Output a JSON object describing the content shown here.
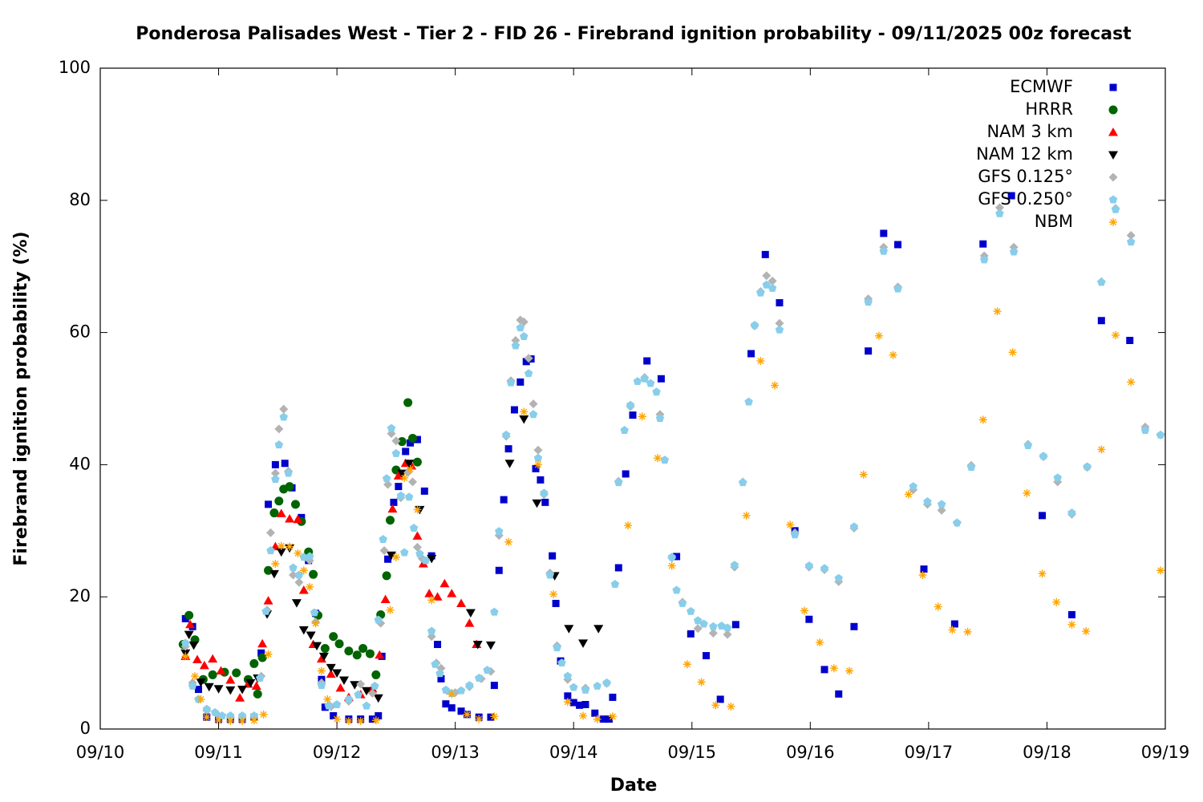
{
  "chart_data": {
    "type": "scatter",
    "title": "Ponderosa Palisades West - Tier 2 - FID 26 - Firebrand ignition probability - 09/11/2025 00z forecast",
    "xlabel": "Date",
    "ylabel": "Firebrand ignition probability (%)",
    "xlim": [
      0,
      9
    ],
    "ylim": [
      0,
      100
    ],
    "xticks": [
      {
        "value": 0,
        "label": "09/10"
      },
      {
        "value": 1,
        "label": "09/11"
      },
      {
        "value": 2,
        "label": "09/12"
      },
      {
        "value": 3,
        "label": "09/13"
      },
      {
        "value": 4,
        "label": "09/14"
      },
      {
        "value": 5,
        "label": "09/15"
      },
      {
        "value": 6,
        "label": "09/16"
      },
      {
        "value": 7,
        "label": "09/17"
      },
      {
        "value": 8,
        "label": "09/18"
      },
      {
        "value": 9,
        "label": "09/19"
      }
    ],
    "yticks": [
      0,
      20,
      40,
      60,
      80,
      100
    ],
    "legend": "top-right",
    "grid": false,
    "series": [
      {
        "name": "ECMWF",
        "color": "#0000cc",
        "x": [
          0.72,
          0.78,
          0.83,
          0.9,
          1.0,
          1.1,
          1.2,
          1.3,
          1.36,
          1.42,
          1.48,
          1.56,
          1.62,
          1.7,
          1.76,
          1.82,
          1.87,
          1.9,
          1.97,
          2.1,
          2.2,
          2.3,
          2.35,
          2.38,
          2.43,
          2.48,
          2.52,
          2.58,
          2.62,
          2.68,
          2.74,
          2.8,
          2.85,
          2.88,
          2.92,
          2.97,
          3.05,
          3.1,
          3.2,
          3.3,
          3.33,
          3.37,
          3.41,
          3.45,
          3.5,
          3.55,
          3.6,
          3.64,
          3.68,
          3.72,
          3.76,
          3.82,
          3.85,
          3.89,
          3.95,
          4.0,
          4.05,
          4.1,
          4.18,
          4.25,
          4.3,
          4.33,
          4.38,
          4.44,
          4.5,
          4.62,
          4.74,
          4.87,
          4.99,
          5.12,
          5.24,
          5.37,
          5.5,
          5.62,
          5.74,
          5.87,
          5.99,
          6.12,
          6.24,
          6.37,
          6.49,
          6.62,
          6.74,
          6.96,
          7.22,
          7.46,
          7.7,
          7.96,
          8.21,
          8.46,
          8.7
        ],
        "values": [
          16.7,
          15.5,
          6,
          1.8,
          1.5,
          1.5,
          1.5,
          1.8,
          11.5,
          34,
          40,
          40.2,
          36.5,
          32,
          25.5,
          17.5,
          7.5,
          3.3,
          2,
          1.5,
          1.5,
          1.5,
          2,
          11,
          25.7,
          34.3,
          36.7,
          42,
          43.3,
          43.8,
          36,
          26.2,
          12.8,
          7.6,
          3.8,
          3.2,
          2.7,
          2.2,
          1.8,
          1.8,
          6.6,
          24,
          34.7,
          42.4,
          48.3,
          52.5,
          55.6,
          56,
          39.4,
          37.7,
          34.3,
          26.2,
          19,
          10.3,
          5,
          4,
          3.6,
          3.7,
          2.4,
          1.5,
          1.5,
          4.8,
          24.4,
          38.6,
          47.5,
          55.7,
          53,
          26.1,
          14.4,
          11.1,
          4.5,
          15.8,
          56.8,
          71.8,
          64.5,
          30,
          16.6,
          9,
          5.3,
          15.5,
          57.2,
          75,
          73.3,
          24.2,
          15.9,
          73.4,
          80.7,
          32.3,
          17.3,
          61.8,
          58.8
        ]
      },
      {
        "name": "HRRR",
        "color": "#006400",
        "x": [
          0.7,
          0.75,
          0.8,
          0.87,
          0.95,
          1.05,
          1.15,
          1.25,
          1.3,
          1.33,
          1.37,
          1.42,
          1.47,
          1.51,
          1.55,
          1.6,
          1.65,
          1.7,
          1.76,
          1.8,
          1.84,
          1.9,
          1.97,
          2.02,
          2.1,
          2.17,
          2.22,
          2.28,
          2.33,
          2.37,
          2.42,
          2.45,
          2.5,
          2.55,
          2.6,
          2.64,
          2.68
        ],
        "values": [
          12.8,
          17.2,
          13.5,
          7.5,
          8.2,
          8.6,
          8.5,
          7.5,
          9.9,
          5.3,
          10.8,
          24,
          32.7,
          34.5,
          36.3,
          36.7,
          34,
          31.4,
          26.8,
          23.4,
          17.2,
          12.2,
          14,
          12.9,
          11.8,
          11.2,
          12.2,
          11.4,
          8.2,
          17.3,
          23.2,
          31.6,
          39.2,
          43.5,
          49.4,
          44,
          40.4
        ]
      },
      {
        "name": "NAM 3 km",
        "color": "#ff0000",
        "x": [
          0.72,
          0.76,
          0.82,
          0.88,
          0.95,
          1.02,
          1.1,
          1.18,
          1.25,
          1.32,
          1.37,
          1.42,
          1.48,
          1.53,
          1.6,
          1.67,
          1.72,
          1.8,
          1.87,
          1.95,
          2.03,
          2.1,
          2.2,
          2.3,
          2.36,
          2.41,
          2.47,
          2.52,
          2.58,
          2.63,
          2.68,
          2.73,
          2.78,
          2.85,
          2.91,
          2.97,
          3.05,
          3.12,
          3.18
        ],
        "values": [
          11,
          15.8,
          10.5,
          9.6,
          10.6,
          8.8,
          7.4,
          4.7,
          6.8,
          6.5,
          12.9,
          19.4,
          27.6,
          32.6,
          31.8,
          31.7,
          21,
          12.8,
          10.6,
          8.3,
          6.2,
          4.8,
          5.2,
          6.1,
          11.2,
          19.6,
          33.3,
          38.3,
          40.2,
          39.8,
          29.2,
          25,
          20.5,
          20,
          22,
          20.5,
          19,
          16,
          12.8
        ]
      },
      {
        "name": "NAM 12 km",
        "color": "#000000",
        "x": [
          0.72,
          0.75,
          0.79,
          0.85,
          0.92,
          1.0,
          1.1,
          1.2,
          1.27,
          1.33,
          1.41,
          1.47,
          1.53,
          1.6,
          1.66,
          1.72,
          1.78,
          1.83,
          1.89,
          1.95,
          2.0,
          2.06,
          2.15,
          2.25,
          2.35,
          2.46,
          2.55,
          2.61,
          2.7,
          2.8,
          3.13,
          3.19,
          3.3,
          3.46,
          3.58,
          3.69,
          3.84,
          3.96,
          4.08,
          4.21
        ],
        "values": [
          11.5,
          14.3,
          12.7,
          7.1,
          6.4,
          6.1,
          5.9,
          6,
          7,
          7.7,
          17.4,
          23.5,
          26.8,
          27.4,
          19.1,
          15,
          14.2,
          12.6,
          11,
          9.3,
          8.5,
          7.4,
          6.7,
          5.8,
          4.7,
          26.3,
          38.7,
          40.2,
          33.2,
          25.8,
          17.6,
          12.8,
          12.7,
          40.2,
          46.9,
          34.2,
          23.2,
          15.2,
          13,
          15.2
        ]
      },
      {
        "name": "GFS 0.125°",
        "color": "#b3b3b3",
        "x": [
          0.72,
          0.78,
          0.83,
          0.9,
          1.0,
          1.1,
          1.2,
          1.3,
          1.36,
          1.41,
          1.44,
          1.48,
          1.51,
          1.55,
          1.59,
          1.63,
          1.68,
          1.77,
          1.82,
          1.87,
          1.95,
          2.1,
          2.2,
          2.3,
          2.37,
          2.4,
          2.43,
          2.46,
          2.5,
          2.54,
          2.6,
          2.64,
          2.68,
          2.72,
          2.8,
          2.84,
          2.88,
          2.93,
          3.0,
          3.12,
          3.22,
          3.3,
          3.37,
          3.43,
          3.47,
          3.51,
          3.55,
          3.58,
          3.62,
          3.66,
          3.7,
          3.75,
          3.8,
          3.86,
          3.95,
          4.1,
          4.28,
          4.38,
          4.48,
          4.6,
          4.73,
          4.83,
          4.92,
          5.05,
          5.18,
          5.3,
          5.36,
          5.43,
          5.53,
          5.58,
          5.63,
          5.68,
          5.74,
          5.87,
          5.99,
          6.12,
          6.24,
          6.37,
          6.49,
          6.62,
          6.74,
          6.87,
          6.99,
          7.11,
          7.24,
          7.36,
          7.47,
          7.6,
          7.72,
          7.84,
          7.97,
          8.09,
          8.21,
          8.34,
          8.46,
          8.58,
          8.71,
          8.83,
          8.96
        ],
        "values": [
          12.5,
          7,
          4.5,
          2.8,
          2,
          1.8,
          1.8,
          1.8,
          8,
          18,
          29.7,
          38.7,
          45.4,
          48.4,
          39,
          23.3,
          22.2,
          25.5,
          16.2,
          7,
          3.4,
          4.2,
          6.8,
          5.4,
          16,
          27,
          37,
          44.7,
          43.6,
          35,
          38.8,
          37.4,
          27.5,
          25.8,
          14,
          10,
          9.2,
          5.8,
          5.5,
          6.4,
          7.6,
          8.7,
          29.3,
          44.3,
          52.7,
          58.8,
          61.9,
          61.6,
          56.1,
          49.2,
          42.2,
          35.5,
          23.6,
          12.6,
          7.5,
          6.2,
          6.9,
          37.5,
          48.8,
          53.2,
          47.6,
          25.9,
          19.2,
          15.2,
          14.5,
          14.3,
          24.5,
          37.4,
          61,
          66.2,
          68.6,
          67.8,
          61.4,
          29.7,
          24.5,
          24.1,
          22.3,
          30.4,
          65.1,
          72.9,
          66.9,
          36.2,
          34,
          33.1,
          31.2,
          39.9,
          71.6,
          78.9,
          72.9,
          43.1,
          41.2,
          37.4,
          32.5,
          39.6,
          67.7,
          78.8,
          74.7,
          45.7,
          44.5
        ]
      },
      {
        "name": "GFS 0.250°",
        "color": "#87ceeb",
        "x": [
          0.72,
          0.78,
          0.83,
          0.9,
          0.97,
          1.03,
          1.1,
          1.2,
          1.3,
          1.35,
          1.4,
          1.44,
          1.48,
          1.51,
          1.55,
          1.59,
          1.63,
          1.68,
          1.72,
          1.77,
          1.81,
          1.87,
          1.93,
          2.0,
          2.1,
          2.18,
          2.25,
          2.32,
          2.35,
          2.39,
          2.42,
          2.46,
          2.5,
          2.54,
          2.57,
          2.61,
          2.65,
          2.7,
          2.75,
          2.8,
          2.83,
          2.87,
          2.92,
          2.97,
          3.05,
          3.12,
          3.2,
          3.27,
          3.33,
          3.37,
          3.43,
          3.47,
          3.51,
          3.55,
          3.58,
          3.62,
          3.66,
          3.7,
          3.75,
          3.8,
          3.86,
          3.9,
          3.95,
          4.0,
          4.1,
          4.2,
          4.28,
          4.35,
          4.38,
          4.43,
          4.48,
          4.54,
          4.6,
          4.65,
          4.7,
          4.73,
          4.77,
          4.83,
          4.87,
          4.92,
          4.99,
          5.05,
          5.1,
          5.18,
          5.25,
          5.3,
          5.36,
          5.43,
          5.48,
          5.53,
          5.58,
          5.63,
          5.68,
          5.74,
          5.87,
          5.99,
          6.12,
          6.24,
          6.37,
          6.49,
          6.62,
          6.74,
          6.87,
          6.99,
          7.11,
          7.24,
          7.36,
          7.47,
          7.6,
          7.72,
          7.84,
          7.97,
          8.09,
          8.21,
          8.34,
          8.46,
          8.58,
          8.71,
          8.83,
          8.96
        ],
        "values": [
          13,
          6.5,
          4.5,
          3,
          2.5,
          2,
          2,
          2,
          2,
          7.7,
          17.8,
          27,
          37.8,
          43,
          47.2,
          38.7,
          24.4,
          23.3,
          26,
          26.1,
          17.6,
          6.6,
          3.5,
          3.7,
          4.5,
          5.2,
          3.5,
          6.5,
          16.5,
          28.7,
          37.9,
          45.5,
          41.7,
          35.3,
          26.7,
          35.1,
          30.4,
          26.5,
          25.5,
          14.8,
          9.8,
          8.4,
          5.9,
          5.4,
          5.8,
          6.6,
          7.7,
          8.9,
          17.7,
          29.9,
          44.5,
          52.4,
          58,
          60.7,
          59.4,
          53.8,
          47.6,
          41,
          35.7,
          23.3,
          12.3,
          10,
          8,
          6.3,
          5.9,
          6.5,
          7,
          21.9,
          37.3,
          45.2,
          49,
          52.6,
          53,
          52.3,
          51,
          47,
          40.7,
          26,
          21,
          19,
          17.8,
          16.4,
          15.9,
          15.5,
          15.6,
          15.3,
          24.8,
          37.3,
          49.5,
          61.1,
          66,
          67.2,
          66.7,
          60.4,
          29.4,
          24.7,
          24.3,
          22.8,
          30.6,
          64.6,
          72.3,
          66.6,
          36.7,
          34.4,
          34,
          31.2,
          39.6,
          71,
          78,
          72.2,
          42.9,
          41.3,
          38,
          32.7,
          39.7,
          67.6,
          78.6,
          73.7,
          45.2,
          44.5
        ]
      },
      {
        "name": "NBM",
        "color": "#ffa500",
        "x": [
          0.72,
          0.8,
          0.85,
          0.9,
          1.0,
          1.1,
          1.2,
          1.3,
          1.38,
          1.42,
          1.48,
          1.53,
          1.6,
          1.67,
          1.72,
          1.77,
          1.82,
          1.87,
          1.92,
          2.0,
          2.1,
          2.2,
          2.33,
          2.45,
          2.5,
          2.57,
          2.62,
          2.68,
          2.8,
          2.97,
          3.1,
          3.2,
          3.33,
          3.45,
          3.58,
          3.7,
          3.83,
          3.95,
          4.08,
          4.2,
          4.33,
          4.46,
          4.58,
          4.71,
          4.83,
          4.96,
          5.08,
          5.2,
          5.33,
          5.46,
          5.58,
          5.7,
          5.83,
          5.95,
          6.08,
          6.2,
          6.33,
          6.45,
          6.58,
          6.7,
          6.83,
          6.95,
          7.08,
          7.2,
          7.33,
          7.46,
          7.58,
          7.71,
          7.83,
          7.96,
          8.08,
          8.21,
          8.33,
          8.46,
          8.58,
          8.71,
          8.96
        ],
        "values": [
          11,
          8,
          4.5,
          1.8,
          1.2,
          1.2,
          1.2,
          1.3,
          2.2,
          11.3,
          25,
          27.7,
          27.6,
          26.6,
          24,
          21.5,
          16,
          8.8,
          4.5,
          1.5,
          1.2,
          1.2,
          1.3,
          18,
          26,
          38,
          39.3,
          33.2,
          19.5,
          5.3,
          2.2,
          1.5,
          1.9,
          28.3,
          48,
          40,
          20.4,
          4.1,
          2,
          1.5,
          1.9,
          30.8,
          47.3,
          41,
          24.7,
          9.8,
          7.1,
          3.6,
          3.4,
          32.3,
          55.7,
          52,
          30.9,
          17.9,
          13.1,
          9.2,
          8.8,
          38.5,
          59.5,
          56.6,
          35.5,
          23.3,
          18.5,
          15,
          14.7,
          46.8,
          63.2,
          57,
          35.7,
          23.5,
          19.2,
          15.8,
          14.8,
          42.3,
          59.6,
          52.5,
          24
        ]
      }
    ]
  }
}
